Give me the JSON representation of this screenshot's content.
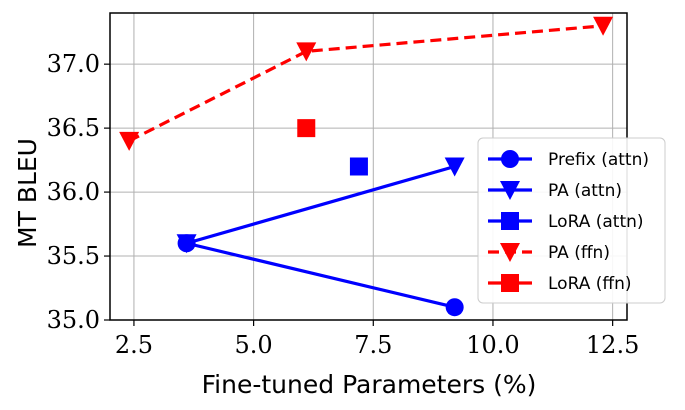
{
  "chart_data": {
    "type": "line",
    "xlabel": "Fine-tuned Parameters (%)",
    "ylabel": "MT BLEU",
    "xlim": [
      2.0,
      12.8
    ],
    "ylim": [
      35.0,
      37.4
    ],
    "xticks": [
      2.5,
      5.0,
      7.5,
      10.0,
      12.5
    ],
    "xtick_labels": [
      "2.5",
      "5.0",
      "7.5",
      "10.0",
      "12.5"
    ],
    "yticks": [
      35.0,
      35.5,
      36.0,
      36.5,
      37.0
    ],
    "ytick_labels": [
      "35.0",
      "35.5",
      "36.0",
      "36.5",
      "37.0"
    ],
    "grid": true,
    "legend_position": "center-right",
    "series": [
      {
        "name": "Prefix (attn)",
        "color": "#0000ff",
        "marker": "circle",
        "line": "solid",
        "x": [
          3.6,
          9.2
        ],
        "y": [
          35.6,
          35.1
        ]
      },
      {
        "name": "PA (attn)",
        "color": "#0000ff",
        "marker": "triangle-down",
        "line": "solid",
        "x": [
          3.6,
          9.2
        ],
        "y": [
          35.6,
          36.2
        ]
      },
      {
        "name": "LoRA (attn)",
        "color": "#0000ff",
        "marker": "square",
        "line": "none",
        "x": [
          7.2
        ],
        "y": [
          36.2
        ]
      },
      {
        "name": "PA (ffn)",
        "color": "#ff0000",
        "marker": "triangle-down",
        "line": "dashed",
        "x": [
          2.4,
          6.1,
          12.3
        ],
        "y": [
          36.4,
          37.1,
          37.3
        ]
      },
      {
        "name": "LoRA (ffn)",
        "color": "#ff0000",
        "marker": "square",
        "line": "none",
        "x": [
          6.1
        ],
        "y": [
          36.5
        ]
      }
    ]
  }
}
